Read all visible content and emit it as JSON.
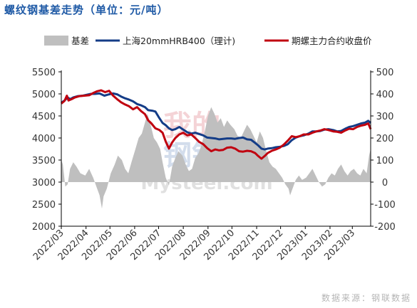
{
  "title": "螺纹钢基差走势（单位：元/吨）",
  "source_note": "数据来源：钢联数据",
  "watermark": {
    "line1": "我的",
    "line2": "钢铁",
    "latin": "Mysteel.com"
  },
  "colors": {
    "basis_fill": "#bfbfbf",
    "spot": "#143c87",
    "futures": "#c0000f",
    "title": "#1f5aa6"
  },
  "chart_data": {
    "type": "line",
    "legend": {
      "placement": "top",
      "entries": [
        "基差",
        "上海20mmHRB400（理计)",
        "期螺主力合约收盘价"
      ]
    },
    "x_ticks": [
      "2022/03",
      "2022/04",
      "2022/05",
      "2022/06",
      "2022/07",
      "2022/08",
      "2022/09",
      "2022/10",
      "2022/11",
      "2022/12",
      "2023/01",
      "2023/02",
      "2023/03"
    ],
    "x_range": [
      "2022-03-01",
      "2023-03-24"
    ],
    "y_left": {
      "ticks": [
        "5500",
        "5000",
        "4500",
        "4000",
        "3500",
        "3000",
        "2500",
        "2000"
      ],
      "range": [
        2000,
        5500
      ]
    },
    "y_right": {
      "ticks": [
        "500",
        "400",
        "300",
        "200",
        "100",
        "0",
        "-100",
        "-200"
      ],
      "range": [
        -200,
        500
      ]
    },
    "grid": false,
    "series": [
      {
        "name": "基差",
        "axis": "right",
        "style": "area",
        "points": [
          [
            "2022-03-01",
            100
          ],
          [
            "2022-03-03",
            80
          ],
          [
            "2022-03-06",
            -20
          ],
          [
            "2022-03-09",
            -10
          ],
          [
            "2022-03-12",
            60
          ],
          [
            "2022-03-16",
            90
          ],
          [
            "2022-03-20",
            70
          ],
          [
            "2022-03-25",
            40
          ],
          [
            "2022-03-31",
            30
          ],
          [
            "2022-04-05",
            60
          ],
          [
            "2022-04-10",
            20
          ],
          [
            "2022-04-14",
            -20
          ],
          [
            "2022-04-18",
            -60
          ],
          [
            "2022-04-21",
            -120
          ],
          [
            "2022-04-23",
            -65
          ],
          [
            "2022-04-27",
            -30
          ],
          [
            "2022-05-02",
            40
          ],
          [
            "2022-05-07",
            80
          ],
          [
            "2022-05-11",
            120
          ],
          [
            "2022-05-16",
            100
          ],
          [
            "2022-05-20",
            60
          ],
          [
            "2022-05-24",
            40
          ],
          [
            "2022-05-28",
            90
          ],
          [
            "2022-06-02",
            150
          ],
          [
            "2022-06-06",
            200
          ],
          [
            "2022-06-10",
            220
          ],
          [
            "2022-06-14",
            270
          ],
          [
            "2022-06-17",
            310
          ],
          [
            "2022-06-21",
            260
          ],
          [
            "2022-06-25",
            200
          ],
          [
            "2022-06-29",
            180
          ],
          [
            "2022-07-03",
            150
          ],
          [
            "2022-07-06",
            90
          ],
          [
            "2022-07-10",
            20
          ],
          [
            "2022-07-14",
            -15
          ],
          [
            "2022-07-18",
            70
          ],
          [
            "2022-07-22",
            110
          ],
          [
            "2022-07-26",
            140
          ],
          [
            "2022-07-31",
            120
          ],
          [
            "2022-08-04",
            80
          ],
          [
            "2022-08-08",
            50
          ],
          [
            "2022-08-12",
            60
          ],
          [
            "2022-08-16",
            110
          ],
          [
            "2022-08-20",
            130
          ],
          [
            "2022-08-24",
            170
          ],
          [
            "2022-08-28",
            230
          ],
          [
            "2022-09-01",
            300
          ],
          [
            "2022-09-05",
            340
          ],
          [
            "2022-09-09",
            310
          ],
          [
            "2022-09-13",
            270
          ],
          [
            "2022-09-17",
            290
          ],
          [
            "2022-09-21",
            250
          ],
          [
            "2022-09-25",
            280
          ],
          [
            "2022-09-29",
            260
          ],
          [
            "2022-10-04",
            240
          ],
          [
            "2022-10-08",
            210
          ],
          [
            "2022-10-12",
            200
          ],
          [
            "2022-10-16",
            230
          ],
          [
            "2022-10-20",
            260
          ],
          [
            "2022-10-24",
            240
          ],
          [
            "2022-10-28",
            210
          ],
          [
            "2022-11-01",
            180
          ],
          [
            "2022-11-05",
            230
          ],
          [
            "2022-11-09",
            200
          ],
          [
            "2022-11-13",
            140
          ],
          [
            "2022-11-17",
            90
          ],
          [
            "2022-11-21",
            70
          ],
          [
            "2022-11-25",
            60
          ],
          [
            "2022-11-29",
            40
          ],
          [
            "2022-12-03",
            20
          ],
          [
            "2022-12-07",
            -10
          ],
          [
            "2022-12-11",
            -30
          ],
          [
            "2022-12-13",
            -60
          ],
          [
            "2022-12-16",
            -30
          ],
          [
            "2022-12-20",
            10
          ],
          [
            "2022-12-24",
            30
          ],
          [
            "2022-12-28",
            10
          ],
          [
            "2023-01-02",
            20
          ],
          [
            "2023-01-06",
            40
          ],
          [
            "2023-01-10",
            60
          ],
          [
            "2023-01-14",
            30
          ],
          [
            "2023-01-18",
            0
          ],
          [
            "2023-01-22",
            -20
          ],
          [
            "2023-01-26",
            -10
          ],
          [
            "2023-01-30",
            20
          ],
          [
            "2023-02-03",
            40
          ],
          [
            "2023-02-07",
            30
          ],
          [
            "2023-02-11",
            60
          ],
          [
            "2023-02-15",
            80
          ],
          [
            "2023-02-19",
            50
          ],
          [
            "2023-02-23",
            30
          ],
          [
            "2023-02-27",
            50
          ],
          [
            "2023-03-03",
            60
          ],
          [
            "2023-03-07",
            40
          ],
          [
            "2023-03-11",
            30
          ],
          [
            "2023-03-15",
            60
          ],
          [
            "2023-03-19",
            40
          ],
          [
            "2023-03-22",
            120
          ],
          [
            "2023-03-24",
            150
          ]
        ]
      },
      {
        "name": "上海20mmHRB400（理计)",
        "axis": "left",
        "style": "line",
        "points": [
          [
            "2022-03-01",
            4800
          ],
          [
            "2022-03-05",
            4850
          ],
          [
            "2022-03-09",
            4920
          ],
          [
            "2022-03-12",
            4880
          ],
          [
            "2022-03-16",
            4920
          ],
          [
            "2022-03-22",
            4950
          ],
          [
            "2022-03-28",
            4960
          ],
          [
            "2022-04-02",
            4980
          ],
          [
            "2022-04-07",
            5000
          ],
          [
            "2022-04-12",
            5000
          ],
          [
            "2022-04-18",
            5010
          ],
          [
            "2022-04-24",
            4960
          ],
          [
            "2022-04-30",
            4990
          ],
          [
            "2022-05-05",
            5010
          ],
          [
            "2022-05-10",
            4990
          ],
          [
            "2022-05-15",
            4940
          ],
          [
            "2022-05-20",
            4900
          ],
          [
            "2022-05-25",
            4870
          ],
          [
            "2022-05-30",
            4830
          ],
          [
            "2022-06-04",
            4770
          ],
          [
            "2022-06-09",
            4740
          ],
          [
            "2022-06-14",
            4700
          ],
          [
            "2022-06-18",
            4630
          ],
          [
            "2022-06-23",
            4620
          ],
          [
            "2022-06-27",
            4600
          ],
          [
            "2022-07-02",
            4450
          ],
          [
            "2022-07-06",
            4340
          ],
          [
            "2022-07-10",
            4290
          ],
          [
            "2022-07-14",
            4220
          ],
          [
            "2022-07-18",
            4180
          ],
          [
            "2022-07-22",
            4200
          ],
          [
            "2022-07-27",
            4250
          ],
          [
            "2022-08-01",
            4190
          ],
          [
            "2022-08-06",
            4130
          ],
          [
            "2022-08-11",
            4100
          ],
          [
            "2022-08-16",
            4120
          ],
          [
            "2022-08-21",
            4090
          ],
          [
            "2022-08-26",
            4060
          ],
          [
            "2022-08-31",
            4010
          ],
          [
            "2022-09-05",
            4000
          ],
          [
            "2022-09-10",
            3990
          ],
          [
            "2022-09-15",
            3970
          ],
          [
            "2022-09-20",
            3980
          ],
          [
            "2022-09-25",
            3990
          ],
          [
            "2022-09-30",
            3990
          ],
          [
            "2022-10-05",
            3980
          ],
          [
            "2022-10-10",
            4000
          ],
          [
            "2022-10-15",
            4010
          ],
          [
            "2022-10-20",
            3970
          ],
          [
            "2022-10-25",
            3960
          ],
          [
            "2022-10-30",
            3890
          ],
          [
            "2022-11-03",
            3830
          ],
          [
            "2022-11-07",
            3760
          ],
          [
            "2022-11-11",
            3740
          ],
          [
            "2022-11-15",
            3760
          ],
          [
            "2022-11-20",
            3770
          ],
          [
            "2022-11-25",
            3790
          ],
          [
            "2022-11-30",
            3800
          ],
          [
            "2022-12-05",
            3820
          ],
          [
            "2022-12-10",
            3860
          ],
          [
            "2022-12-15",
            3950
          ],
          [
            "2022-12-20",
            4010
          ],
          [
            "2022-12-25",
            4040
          ],
          [
            "2022-12-30",
            4060
          ],
          [
            "2023-01-05",
            4100
          ],
          [
            "2023-01-10",
            4150
          ],
          [
            "2023-01-15",
            4150
          ],
          [
            "2023-01-20",
            4160
          ],
          [
            "2023-01-25",
            4190
          ],
          [
            "2023-01-30",
            4200
          ],
          [
            "2023-02-05",
            4180
          ],
          [
            "2023-02-10",
            4150
          ],
          [
            "2023-02-15",
            4160
          ],
          [
            "2023-02-20",
            4210
          ],
          [
            "2023-02-25",
            4250
          ],
          [
            "2023-03-02",
            4270
          ],
          [
            "2023-03-07",
            4300
          ],
          [
            "2023-03-12",
            4330
          ],
          [
            "2023-03-17",
            4350
          ],
          [
            "2023-03-21",
            4390
          ],
          [
            "2023-03-24",
            4340
          ]
        ]
      },
      {
        "name": "期螺主力合约收盘价",
        "axis": "left",
        "style": "line",
        "points": [
          [
            "2022-03-01",
            4780
          ],
          [
            "2022-03-05",
            4840
          ],
          [
            "2022-03-08",
            4960
          ],
          [
            "2022-03-10",
            4850
          ],
          [
            "2022-03-14",
            4880
          ],
          [
            "2022-03-18",
            4920
          ],
          [
            "2022-03-24",
            4950
          ],
          [
            "2022-03-30",
            4960
          ],
          [
            "2022-04-05",
            4970
          ],
          [
            "2022-04-10",
            5020
          ],
          [
            "2022-04-15",
            5060
          ],
          [
            "2022-04-20",
            5080
          ],
          [
            "2022-04-25",
            5040
          ],
          [
            "2022-04-30",
            5070
          ],
          [
            "2022-05-05",
            4960
          ],
          [
            "2022-05-10",
            4880
          ],
          [
            "2022-05-15",
            4810
          ],
          [
            "2022-05-20",
            4760
          ],
          [
            "2022-05-25",
            4720
          ],
          [
            "2022-05-30",
            4650
          ],
          [
            "2022-06-04",
            4700
          ],
          [
            "2022-06-09",
            4610
          ],
          [
            "2022-06-14",
            4540
          ],
          [
            "2022-06-18",
            4400
          ],
          [
            "2022-06-22",
            4330
          ],
          [
            "2022-06-27",
            4220
          ],
          [
            "2022-07-02",
            4180
          ],
          [
            "2022-07-06",
            4120
          ],
          [
            "2022-07-10",
            3920
          ],
          [
            "2022-07-14",
            3760
          ],
          [
            "2022-07-18",
            3900
          ],
          [
            "2022-07-22",
            4000
          ],
          [
            "2022-07-27",
            4080
          ],
          [
            "2022-08-01",
            4120
          ],
          [
            "2022-08-06",
            4060
          ],
          [
            "2022-08-11",
            4080
          ],
          [
            "2022-08-16",
            4000
          ],
          [
            "2022-08-21",
            3910
          ],
          [
            "2022-08-26",
            3860
          ],
          [
            "2022-08-31",
            3770
          ],
          [
            "2022-09-05",
            3700
          ],
          [
            "2022-09-10",
            3740
          ],
          [
            "2022-09-15",
            3720
          ],
          [
            "2022-09-20",
            3730
          ],
          [
            "2022-09-25",
            3780
          ],
          [
            "2022-09-30",
            3790
          ],
          [
            "2022-10-05",
            3760
          ],
          [
            "2022-10-10",
            3700
          ],
          [
            "2022-10-15",
            3690
          ],
          [
            "2022-10-20",
            3710
          ],
          [
            "2022-10-25",
            3700
          ],
          [
            "2022-10-30",
            3660
          ],
          [
            "2022-11-03",
            3590
          ],
          [
            "2022-11-07",
            3530
          ],
          [
            "2022-11-11",
            3590
          ],
          [
            "2022-11-15",
            3660
          ],
          [
            "2022-11-20",
            3710
          ],
          [
            "2022-11-25",
            3740
          ],
          [
            "2022-11-30",
            3780
          ],
          [
            "2022-12-05",
            3850
          ],
          [
            "2022-12-10",
            3940
          ],
          [
            "2022-12-15",
            4040
          ],
          [
            "2022-12-20",
            4020
          ],
          [
            "2022-12-25",
            4040
          ],
          [
            "2022-12-30",
            4080
          ],
          [
            "2023-01-05",
            4080
          ],
          [
            "2023-01-10",
            4120
          ],
          [
            "2023-01-15",
            4150
          ],
          [
            "2023-01-20",
            4170
          ],
          [
            "2023-01-25",
            4200
          ],
          [
            "2023-01-30",
            4180
          ],
          [
            "2023-02-05",
            4150
          ],
          [
            "2023-02-10",
            4140
          ],
          [
            "2023-02-15",
            4120
          ],
          [
            "2023-02-20",
            4170
          ],
          [
            "2023-02-25",
            4210
          ],
          [
            "2023-03-02",
            4200
          ],
          [
            "2023-03-07",
            4250
          ],
          [
            "2023-03-12",
            4280
          ],
          [
            "2023-03-17",
            4300
          ],
          [
            "2023-03-21",
            4330
          ],
          [
            "2023-03-24",
            4200
          ]
        ]
      }
    ]
  }
}
